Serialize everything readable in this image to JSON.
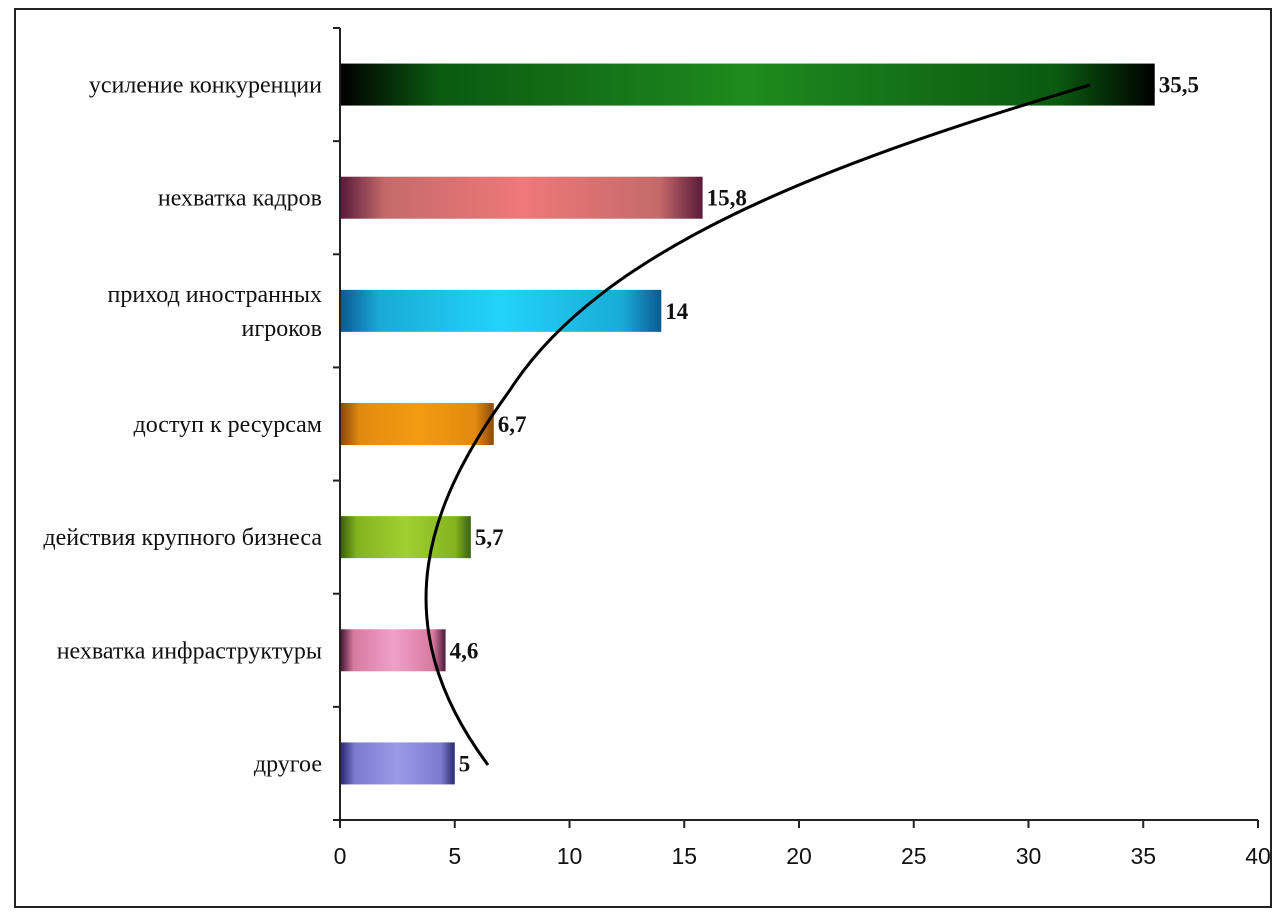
{
  "chart_data": {
    "type": "bar",
    "orientation": "horizontal",
    "categories": [
      [
        "усиление конкуренции"
      ],
      [
        "нехватка кадров"
      ],
      [
        "приход иностранных",
        "игроков"
      ],
      [
        "доступ к ресурсам"
      ],
      [
        "действия крупного бизнеса"
      ],
      [
        "нехватка инфраструктуры"
      ],
      [
        "другое"
      ]
    ],
    "values": [
      35.5,
      15.8,
      14,
      6.7,
      5.7,
      4.6,
      5
    ],
    "value_labels": [
      "35,5",
      "15,8",
      "14",
      "6,7",
      "5,7",
      "4,6",
      "5"
    ],
    "xlim": [
      0,
      40
    ],
    "x_ticks": [
      0,
      5,
      10,
      15,
      20,
      25,
      30,
      35,
      40
    ],
    "title": "",
    "xlabel": "",
    "ylabel": "",
    "grid": false,
    "legend": "none",
    "has_trend_curve": true,
    "colors": [
      [
        "#000000",
        "#0b5a10",
        "#1e8a1e",
        "#0b5a10",
        "#000000"
      ],
      [
        "#5a1a3a",
        "#c46a6a",
        "#f07878",
        "#c46a6a",
        "#5a1a3a"
      ],
      [
        "#0a5a90",
        "#1aaad8",
        "#22d4f8",
        "#1aaad8",
        "#0a5a90"
      ],
      [
        "#8a4a0a",
        "#e28a10",
        "#f59a10",
        "#e28a10",
        "#8a4a0a"
      ],
      [
        "#3a6010",
        "#82b420",
        "#a0d030",
        "#82b420",
        "#3a6010"
      ],
      [
        "#4a1a3a",
        "#d87aa0",
        "#f0a0c8",
        "#d87aa0",
        "#4a1a3a"
      ],
      [
        "#2a2a70",
        "#7a7ad0",
        "#9a9ae8",
        "#7a7ad0",
        "#2a2a70"
      ]
    ]
  }
}
